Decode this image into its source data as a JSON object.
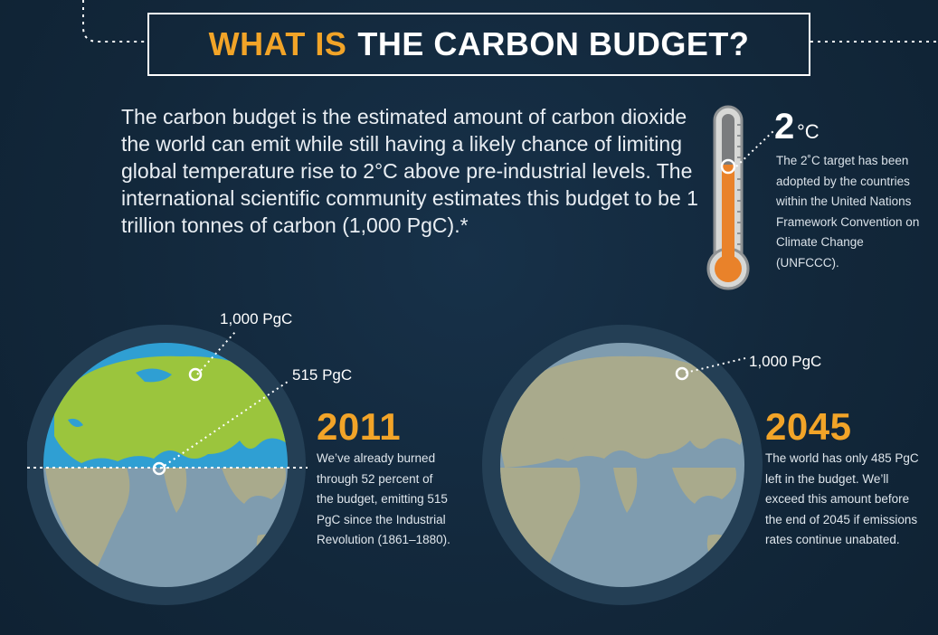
{
  "title": {
    "highlight": "WHAT IS",
    "rest": "THE CARBON BUDGET?"
  },
  "intro": "The carbon budget is the estimated amount of carbon dioxide the world can emit while still having a likely chance of limiting global temperature rise to 2°C above pre-industrial levels. The international scientific community estimates this budget to be 1 trillion tonnes of carbon (1,000 PgC).*",
  "thermometer": {
    "value": "2",
    "unit": "°C",
    "note": "The 2˚C target has been adopted by the countries within the United Nations Framework Convention on Climate Change (UNFCCC)."
  },
  "globe_2011": {
    "total_label": "1,000 PgC",
    "burned_label": "515 PgC",
    "year": "2011",
    "description": "We’ve already burned through 52 percent of the budget, emitting 515 PgC since the Industrial Revolution (1861–1880)."
  },
  "globe_2045": {
    "total_label": "1,000 PgC",
    "year": "2045",
    "description": "The world has only 485 PgC left in the budget. We’ll exceed this amount before the end of 2045 if emissions rates continue unabated."
  },
  "colors": {
    "background": "#13283b",
    "accent": "#f2a428",
    "land_used": "#9bc53d",
    "ocean_used": "#2f9fd3",
    "land_faded": "#a9aa8c",
    "ocean_faded": "#7f9caf"
  }
}
